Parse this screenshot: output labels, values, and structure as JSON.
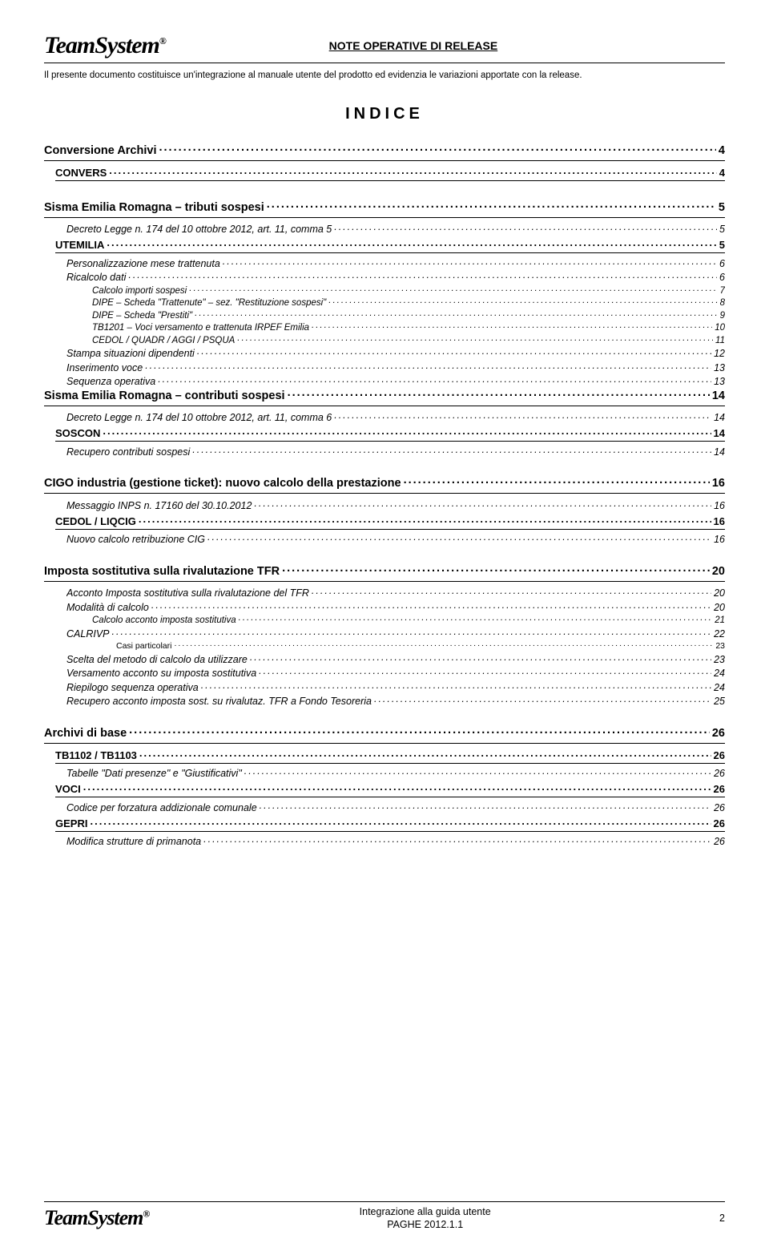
{
  "header": {
    "logo_text": "TeamSystem",
    "logo_reg": "®",
    "doc_title": "NOTE OPERATIVE DI RELEASE",
    "intro": "Il presente documento costituisce un'integrazione al manuale utente del prodotto ed evidenzia le variazioni apportate con la release."
  },
  "indice_title": "INDICE",
  "toc": [
    {
      "level": 1,
      "label": "Conversione Archivi",
      "page": "4",
      "group_start": true
    },
    {
      "level": 2,
      "label": "CONVERS",
      "page": "4",
      "group_end": true
    },
    {
      "level": 1,
      "label": "Sisma Emilia Romagna – tributi sospesi",
      "page": "5",
      "group_start": true
    },
    {
      "level": 3,
      "label": "Decreto Legge n. 174 del 10 ottobre 2012, art. 11, comma 5",
      "page": "5"
    },
    {
      "level": 2,
      "label": "UTEMILIA",
      "page": "5"
    },
    {
      "level": 3,
      "label": "Personalizzazione mese trattenuta",
      "page": "6"
    },
    {
      "level": 3,
      "label": "Ricalcolo dati",
      "page": "6"
    },
    {
      "level": 4,
      "label": "Calcolo importi sospesi",
      "page": "7"
    },
    {
      "level": 4,
      "label": "DIPE – Scheda \"Trattenute\" – sez. \"Restituzione sospesi\"",
      "page": "8"
    },
    {
      "level": 4,
      "label": "DIPE – Scheda \"Prestiti\"",
      "page": "9"
    },
    {
      "level": 4,
      "label": "TB1201 – Voci versamento e trattenuta IRPEF Emilia",
      "page": "10"
    },
    {
      "level": 4,
      "label": "CEDOL / QUADR / AGGI / PSQUA",
      "page": "11"
    },
    {
      "level": 3,
      "label": "Stampa situazioni dipendenti",
      "page": "12"
    },
    {
      "level": 3,
      "label": "Inserimento voce",
      "page": "13"
    },
    {
      "level": 3,
      "label": "Sequenza operativa",
      "page": "13"
    },
    {
      "level": 1,
      "label": "Sisma Emilia Romagna – contributi sospesi",
      "page": "14"
    },
    {
      "level": 3,
      "label": "Decreto Legge n. 174 del 10 ottobre 2012, art. 11, comma 6",
      "page": "14"
    },
    {
      "level": 2,
      "label": "SOSCON",
      "page": "14"
    },
    {
      "level": 3,
      "label": "Recupero contributi sospesi",
      "page": "14",
      "group_end": true
    },
    {
      "level": 1,
      "label": "CIGO industria (gestione ticket): nuovo calcolo della prestazione",
      "page": "16",
      "group_start": true
    },
    {
      "level": 3,
      "label": "Messaggio INPS n. 17160 del 30.10.2012",
      "page": "16"
    },
    {
      "level": 2,
      "label": "CEDOL / LIQCIG",
      "page": "16"
    },
    {
      "level": 3,
      "label": "Nuovo calcolo retribuzione CIG",
      "page": "16",
      "group_end": true
    },
    {
      "level": 1,
      "label": "Imposta sostitutiva sulla rivalutazione TFR",
      "page": "20",
      "group_start": true
    },
    {
      "level": 3,
      "label": "Acconto Imposta sostitutiva sulla rivalutazione del TFR",
      "page": "20"
    },
    {
      "level": 3,
      "label": "Modalità di calcolo",
      "page": "20"
    },
    {
      "level": 4,
      "label": "Calcolo acconto imposta sostitutiva",
      "page": "21"
    },
    {
      "level": 3,
      "label": "CALRIVP",
      "page": "22"
    },
    {
      "level": 5,
      "label": "Casi particolari",
      "page": "23"
    },
    {
      "level": 3,
      "label": "Scelta del metodo di calcolo da utilizzare",
      "page": "23"
    },
    {
      "level": 3,
      "label": "Versamento acconto su imposta sostitutiva",
      "page": "24"
    },
    {
      "level": 3,
      "label": "Riepilogo sequenza operativa",
      "page": "24"
    },
    {
      "level": 3,
      "label": "Recupero acconto imposta sost. su rivalutaz. TFR a Fondo Tesoreria",
      "page": "25",
      "group_end": true
    },
    {
      "level": 1,
      "label": "Archivi di base",
      "page": "26",
      "group_start": true
    },
    {
      "level": 2,
      "label": "TB1102 / TB1103",
      "page": "26"
    },
    {
      "level": 3,
      "label": "Tabelle \"Dati presenze\" e \"Giustificativi\"",
      "page": "26"
    },
    {
      "level": 2,
      "label": "VOCI",
      "page": "26"
    },
    {
      "level": 3,
      "label": "Codice per forzatura addizionale comunale",
      "page": "26"
    },
    {
      "level": 2,
      "label": "GEPRI",
      "page": "26"
    },
    {
      "level": 3,
      "label": "Modifica strutture di primanota",
      "page": "26",
      "group_end": true
    }
  ],
  "footer": {
    "line1": "Integrazione alla guida utente",
    "line2": "PAGHE 2012.1.1",
    "page_num": "2"
  },
  "style": {
    "page_bg": "#ffffff",
    "text_color": "#000000",
    "rule_color": "#000000",
    "font_sizes": {
      "lvl1": 14.5,
      "lvl2": 13,
      "lvl3": 12.5,
      "lvl4": 11.5,
      "lvl5": 10.5,
      "intro": 11.5,
      "indice": 20
    }
  }
}
